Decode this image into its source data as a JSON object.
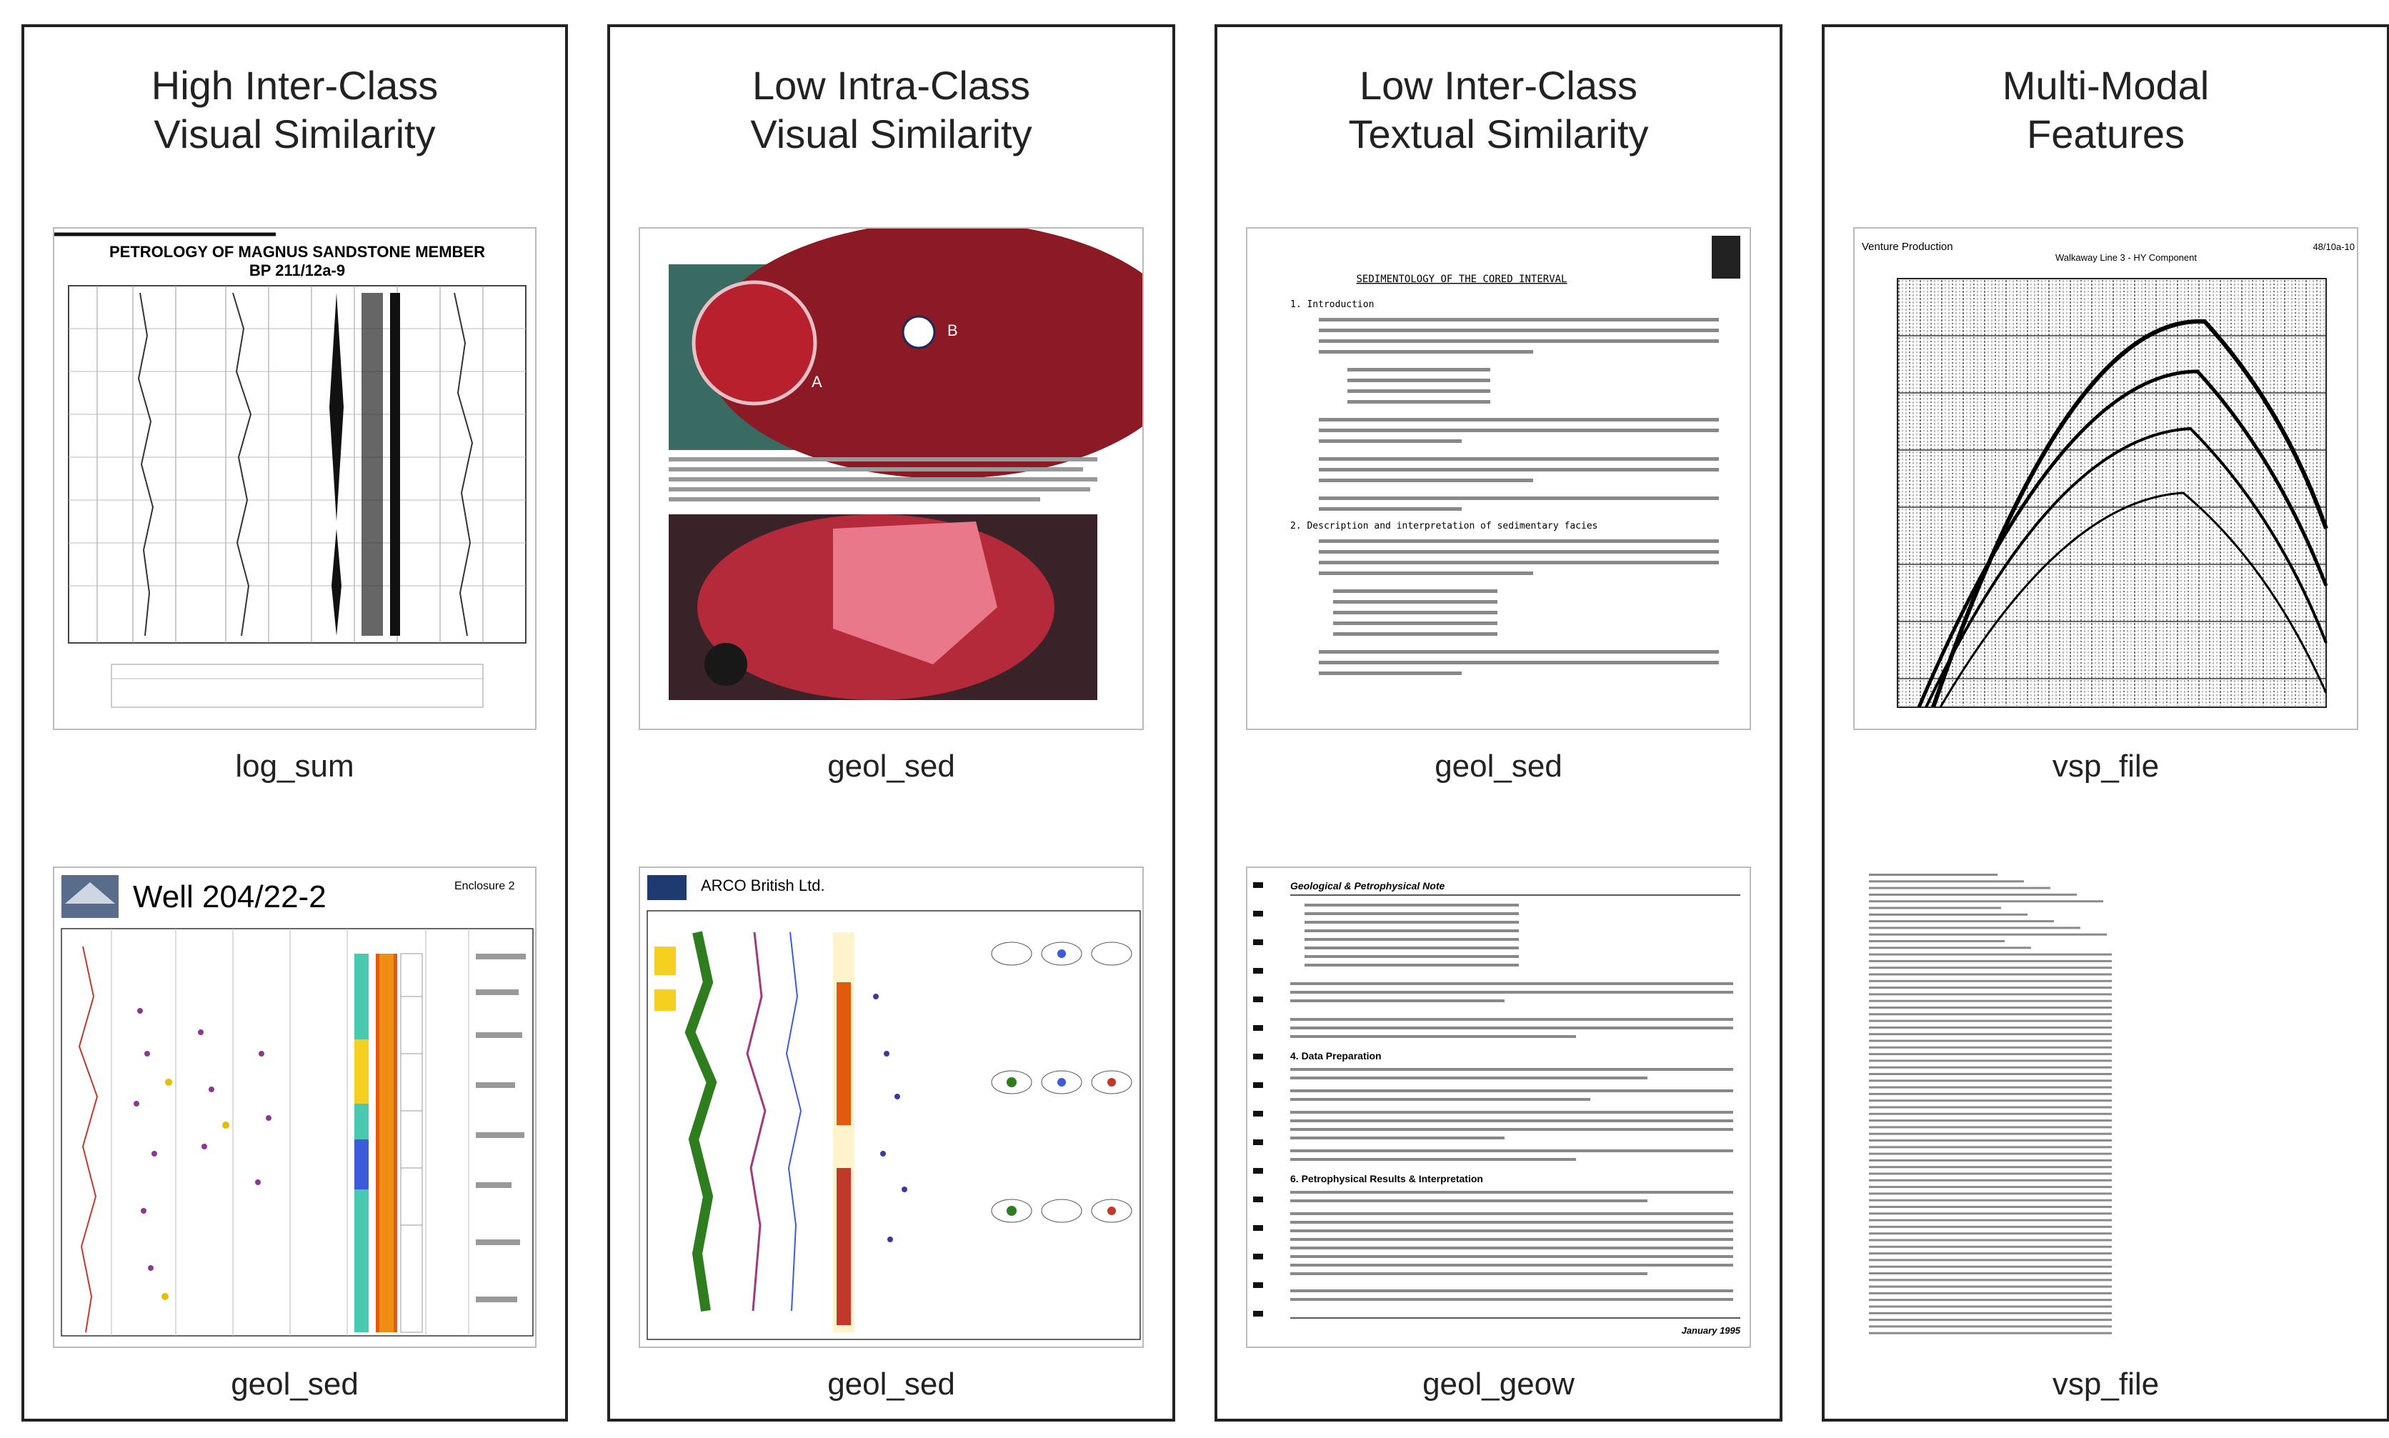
{
  "panels": [
    {
      "title_line1": "High Inter-Class",
      "title_line2": "Visual Similarity",
      "top_label": "log_sum",
      "bottom_label": "geol_sed",
      "top_doc_title": "PETROLOGY OF MAGNUS SANDSTONE MEMBER",
      "top_doc_subtitle": "BP 211/12a-9",
      "bottom_doc_title": "Well 204/22-2",
      "bottom_doc_enclosure": "Enclosure 2"
    },
    {
      "title_line1": "Low Intra-Class",
      "title_line2": "Visual Similarity",
      "top_label": "geol_sed",
      "bottom_label": "geol_sed",
      "bottom_doc_title": "ARCO British Ltd."
    },
    {
      "title_line1": "Low Inter-Class",
      "title_line2": "Textual Similarity",
      "top_label": "geol_sed",
      "bottom_label": "geol_geow",
      "top_doc_title": "SEDIMENTOLOGY OF THE CORED INTERVAL",
      "top_doc_section1": "1.   Introduction",
      "top_doc_section2": "2.   Description and interpretation of sedimentary facies",
      "bottom_doc_header": "Geological & Petrophysical Note",
      "bottom_doc_section1": "4.   Data Preparation",
      "bottom_doc_section2": "6.   Petrophysical Results & Interpretation",
      "bottom_doc_footer": "January 1995"
    },
    {
      "title_line1": "Multi-Modal",
      "title_line2": "Features",
      "top_label": "vsp_file",
      "bottom_label": "vsp_file",
      "top_doc_header_left": "Venture Production",
      "top_doc_header_center": "Walkaway Line 3 - HY Component",
      "top_doc_header_right": "48/10a-10"
    }
  ],
  "colors": {
    "border": "#222222",
    "rock_red": "#a0152a",
    "rock_pink": "#e8788a",
    "log_yellow": "#f5d020",
    "log_green": "#2e7d1e",
    "heat_orange": "#e05a10"
  }
}
